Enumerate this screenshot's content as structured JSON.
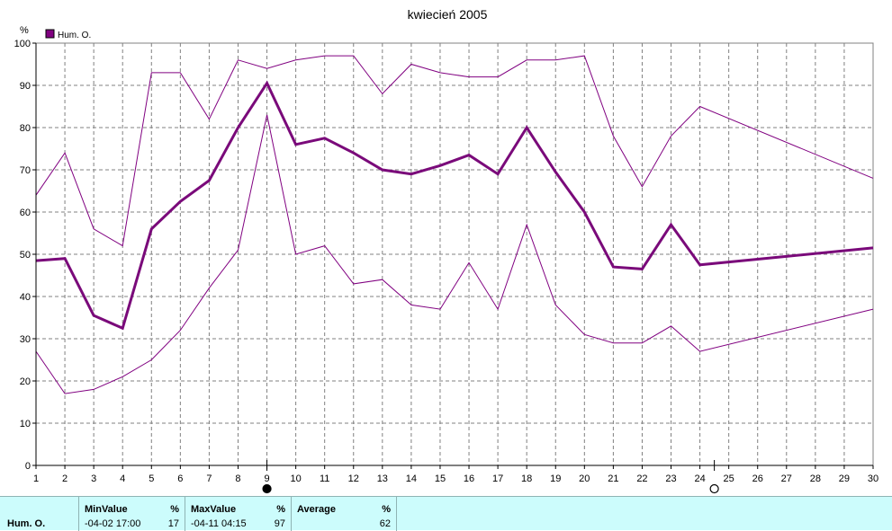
{
  "chart_data": {
    "type": "line",
    "title": "kwiecień 2005",
    "ylabel": "%",
    "legend": {
      "entries": [
        "Hum. O."
      ],
      "placement": "top-left"
    },
    "ylim": [
      0,
      100
    ],
    "yticks": [
      0,
      10,
      20,
      30,
      40,
      50,
      60,
      70,
      80,
      90,
      100
    ],
    "xlim": [
      1,
      30
    ],
    "xticks": [
      1,
      2,
      3,
      4,
      5,
      6,
      7,
      8,
      9,
      10,
      11,
      12,
      13,
      14,
      15,
      16,
      17,
      18,
      19,
      20,
      21,
      22,
      23,
      24,
      25,
      26,
      27,
      28,
      29,
      30
    ],
    "grid": true,
    "series": [
      {
        "name": "Hum. O.",
        "role": "max",
        "color": "#800080",
        "x": [
          1,
          2,
          3,
          4,
          5,
          6,
          7,
          8,
          9,
          10,
          11,
          12,
          13,
          14,
          15,
          16,
          17,
          18,
          19,
          20,
          21,
          22,
          23,
          24,
          30
        ],
        "values": [
          64,
          74,
          56,
          52,
          93,
          93,
          82,
          96,
          94,
          96,
          97,
          97,
          88,
          95,
          93,
          92,
          92,
          96,
          96,
          97,
          78,
          66,
          78,
          85,
          68
        ]
      },
      {
        "name": "Hum. O.",
        "role": "average",
        "color": "#7a0a7a",
        "x": [
          1,
          2,
          3,
          4,
          5,
          6,
          7,
          8,
          9,
          10,
          11,
          12,
          13,
          14,
          15,
          16,
          17,
          18,
          19,
          20,
          21,
          22,
          23,
          24,
          30
        ],
        "values": [
          48.5,
          49,
          35.5,
          32.5,
          56,
          62.5,
          67.5,
          80,
          90.5,
          76,
          77.5,
          74,
          70,
          69,
          71,
          73.5,
          69,
          80,
          69.5,
          60,
          47,
          46.5,
          57,
          47.5,
          51.5
        ]
      },
      {
        "name": "Hum. O.",
        "role": "min",
        "color": "#800080",
        "x": [
          1,
          2,
          3,
          4,
          5,
          6,
          7,
          8,
          9,
          10,
          11,
          12,
          13,
          14,
          15,
          16,
          17,
          18,
          19,
          20,
          21,
          22,
          23,
          24,
          30
        ],
        "values": [
          27,
          17,
          18,
          21,
          25,
          32,
          42,
          51,
          83,
          50,
          52,
          43,
          44,
          38,
          37,
          48,
          37,
          57,
          38,
          31,
          29,
          29,
          33,
          27,
          37
        ]
      }
    ],
    "markers": [
      {
        "x": 9,
        "type": "filled-circle"
      },
      {
        "x": 24.5,
        "type": "open-circle"
      }
    ]
  },
  "colors": {
    "series": "#800080",
    "grid": "#808080",
    "stats_bg": "#ccfcfc"
  },
  "stats": {
    "row_label": "Hum. O.",
    "min": {
      "label": "MinValue",
      "unit": "%",
      "time": "-04-02  17:00",
      "value": "17"
    },
    "max": {
      "label": "MaxValue",
      "unit": "%",
      "time": "-04-11  04:15",
      "value": "97"
    },
    "avg": {
      "label": "Average",
      "unit": "%",
      "value": "62"
    }
  }
}
